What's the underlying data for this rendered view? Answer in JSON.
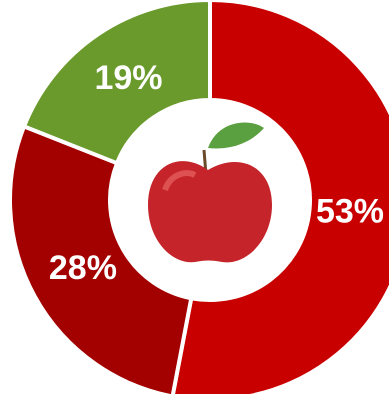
{
  "chart_data": {
    "type": "donut",
    "values": [
      53,
      28,
      19
    ],
    "value_labels": [
      "53%",
      "28%",
      "19%"
    ],
    "colors": [
      "#c80000",
      "#a30000",
      "#6a9a2c"
    ]
  }
}
